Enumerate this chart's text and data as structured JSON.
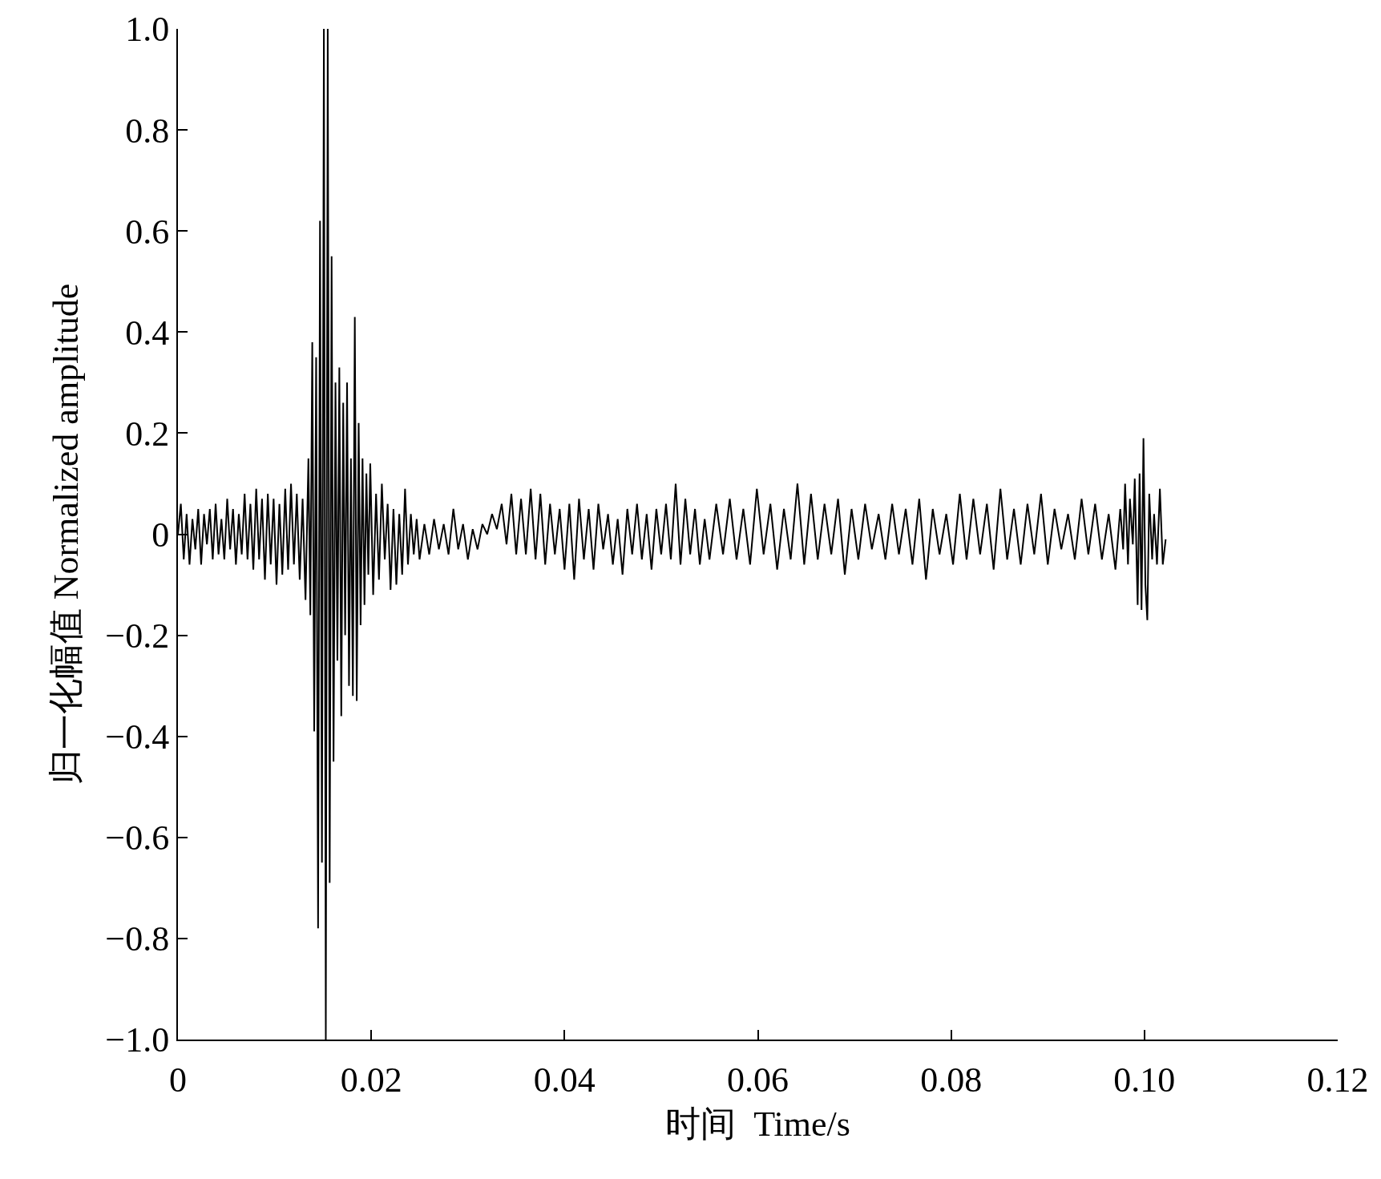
{
  "chart_data": {
    "type": "line",
    "xlabel": "时间  Time/s",
    "ylabel": "归一化幅值 Normalized amplitude",
    "xlim": [
      0,
      0.12
    ],
    "ylim": [
      -1.0,
      1.0
    ],
    "xticks": [
      0,
      0.02,
      0.04,
      0.06,
      0.08,
      {
        "value": 0.1,
        "label": "0.10"
      },
      0.12
    ],
    "yticks": [
      {
        "value": -1.0,
        "label": "−1.0"
      },
      {
        "value": -0.8,
        "label": "−0.8"
      },
      {
        "value": -0.6,
        "label": "−0.6"
      },
      {
        "value": -0.4,
        "label": "−0.4"
      },
      {
        "value": -0.2,
        "label": "−0.2"
      },
      0,
      0.2,
      0.4,
      0.6,
      0.8,
      {
        "value": 1.0,
        "label": "1.0"
      }
    ],
    "marker": "none",
    "line_style": "solid",
    "series": [
      {
        "color": "#000000",
        "x": [
          0,
          0.0003,
          0.0006,
          0.0009,
          0.0012,
          0.0015,
          0.0018,
          0.0021,
          0.0024,
          0.0027,
          0.003,
          0.0033,
          0.0036,
          0.0039,
          0.0042,
          0.0045,
          0.0048,
          0.0051,
          0.0054,
          0.0057,
          0.006,
          0.0063,
          0.0066,
          0.0069,
          0.0072,
          0.0075,
          0.0078,
          0.0081,
          0.0084,
          0.0087,
          0.009,
          0.0093,
          0.0096,
          0.0099,
          0.0102,
          0.0105,
          0.0108,
          0.0111,
          0.0114,
          0.0117,
          0.012,
          0.0123,
          0.0126,
          0.0129,
          0.0132,
          0.0135,
          0.0137,
          0.0139,
          0.0141,
          0.0143,
          0.0145,
          0.0147,
          0.0149,
          0.0151,
          0.0153,
          0.0155,
          0.0157,
          0.0159,
          0.0161,
          0.0163,
          0.0165,
          0.0167,
          0.0169,
          0.0171,
          0.0173,
          0.0175,
          0.0177,
          0.0179,
          0.0181,
          0.0183,
          0.0185,
          0.0187,
          0.0189,
          0.0191,
          0.0193,
          0.0195,
          0.0197,
          0.0199,
          0.0202,
          0.0205,
          0.0208,
          0.0211,
          0.0214,
          0.0217,
          0.022,
          0.0223,
          0.0226,
          0.0229,
          0.0232,
          0.0235,
          0.0238,
          0.0241,
          0.0244,
          0.0247,
          0.025,
          0.0255,
          0.026,
          0.0265,
          0.027,
          0.0275,
          0.028,
          0.0285,
          0.029,
          0.0295,
          0.03,
          0.0305,
          0.031,
          0.0315,
          0.032,
          0.0325,
          0.033,
          0.0335,
          0.034,
          0.0345,
          0.035,
          0.0355,
          0.036,
          0.0365,
          0.037,
          0.0375,
          0.038,
          0.0385,
          0.039,
          0.0395,
          0.04,
          0.0405,
          0.041,
          0.0415,
          0.042,
          0.0425,
          0.043,
          0.0435,
          0.044,
          0.0445,
          0.045,
          0.0455,
          0.046,
          0.0465,
          0.047,
          0.0475,
          0.048,
          0.0485,
          0.049,
          0.0495,
          0.05,
          0.0505,
          0.051,
          0.0515,
          0.052,
          0.0525,
          0.053,
          0.0535,
          0.054,
          0.0545,
          0.055,
          0.0557,
          0.0564,
          0.0571,
          0.0578,
          0.0585,
          0.0592,
          0.0599,
          0.0606,
          0.0613,
          0.062,
          0.0627,
          0.0634,
          0.0641,
          0.0648,
          0.0655,
          0.0662,
          0.0669,
          0.0676,
          0.0683,
          0.069,
          0.0697,
          0.0704,
          0.0711,
          0.0718,
          0.0725,
          0.0732,
          0.0739,
          0.0746,
          0.0753,
          0.076,
          0.0767,
          0.0774,
          0.0781,
          0.0788,
          0.0795,
          0.0802,
          0.0809,
          0.0816,
          0.0823,
          0.083,
          0.0837,
          0.0844,
          0.0851,
          0.0858,
          0.0865,
          0.0872,
          0.0879,
          0.0886,
          0.0893,
          0.09,
          0.0907,
          0.0914,
          0.0921,
          0.0928,
          0.0935,
          0.0942,
          0.0949,
          0.0956,
          0.0963,
          0.097,
          0.0975,
          0.0978,
          0.098,
          0.0983,
          0.0985,
          0.0988,
          0.099,
          0.0993,
          0.0995,
          0.0997,
          0.0999,
          0.1001,
          0.1003,
          0.1005,
          0.1008,
          0.101,
          0.1013,
          0.1016,
          0.1019,
          0.1022
        ],
        "values": [
          0.0,
          0.06,
          -0.05,
          0.04,
          -0.06,
          0.03,
          -0.03,
          0.05,
          -0.06,
          0.04,
          -0.02,
          0.05,
          -0.05,
          0.06,
          -0.04,
          0.03,
          -0.05,
          0.07,
          -0.03,
          0.05,
          -0.06,
          0.04,
          -0.04,
          0.08,
          -0.05,
          0.06,
          -0.07,
          0.09,
          -0.05,
          0.07,
          -0.09,
          0.08,
          -0.06,
          0.07,
          -0.1,
          0.06,
          -0.08,
          0.09,
          -0.07,
          0.1,
          -0.06,
          0.08,
          -0.09,
          0.07,
          -0.13,
          0.15,
          -0.16,
          0.38,
          -0.39,
          0.35,
          -0.78,
          0.62,
          -0.65,
          1.0,
          -1.0,
          1.0,
          -0.69,
          0.55,
          -0.45,
          0.3,
          -0.25,
          0.33,
          -0.36,
          0.26,
          -0.2,
          0.3,
          -0.3,
          0.15,
          -0.32,
          0.43,
          -0.33,
          0.22,
          -0.18,
          0.15,
          -0.14,
          0.12,
          -0.08,
          0.14,
          -0.12,
          0.08,
          -0.09,
          0.1,
          -0.05,
          0.06,
          -0.11,
          0.05,
          -0.1,
          0.04,
          -0.08,
          0.09,
          -0.06,
          0.04,
          -0.04,
          0.03,
          -0.05,
          0.02,
          -0.04,
          0.03,
          -0.03,
          0.02,
          -0.04,
          0.05,
          -0.03,
          0.02,
          -0.05,
          0.01,
          -0.03,
          0.02,
          0.0,
          0.04,
          0.01,
          0.06,
          -0.02,
          0.08,
          -0.04,
          0.07,
          -0.04,
          0.09,
          -0.05,
          0.08,
          -0.06,
          0.06,
          -0.04,
          0.05,
          -0.07,
          0.06,
          -0.09,
          0.07,
          -0.05,
          0.05,
          -0.07,
          0.06,
          -0.03,
          0.04,
          -0.06,
          0.03,
          -0.08,
          0.05,
          -0.04,
          0.06,
          -0.05,
          0.04,
          -0.07,
          0.05,
          -0.04,
          0.06,
          -0.05,
          0.1,
          -0.06,
          0.07,
          -0.04,
          0.05,
          -0.06,
          0.03,
          -0.05,
          0.06,
          -0.04,
          0.07,
          -0.05,
          0.05,
          -0.06,
          0.09,
          -0.04,
          0.06,
          -0.07,
          0.05,
          -0.05,
          0.1,
          -0.06,
          0.08,
          -0.05,
          0.06,
          -0.04,
          0.07,
          -0.08,
          0.05,
          -0.05,
          0.06,
          -0.03,
          0.04,
          -0.05,
          0.06,
          -0.04,
          0.05,
          -0.06,
          0.07,
          -0.09,
          0.05,
          -0.04,
          0.04,
          -0.06,
          0.08,
          -0.05,
          0.07,
          -0.04,
          0.06,
          -0.07,
          0.09,
          -0.05,
          0.05,
          -0.06,
          0.06,
          -0.04,
          0.08,
          -0.06,
          0.05,
          -0.03,
          0.04,
          -0.05,
          0.07,
          -0.04,
          0.06,
          -0.05,
          0.04,
          -0.07,
          0.05,
          -0.03,
          0.1,
          -0.06,
          0.07,
          -0.02,
          0.11,
          -0.14,
          0.12,
          -0.15,
          0.19,
          -0.1,
          -0.17,
          0.08,
          -0.05,
          0.04,
          -0.06,
          0.09,
          -0.06,
          -0.01
        ]
      }
    ]
  }
}
